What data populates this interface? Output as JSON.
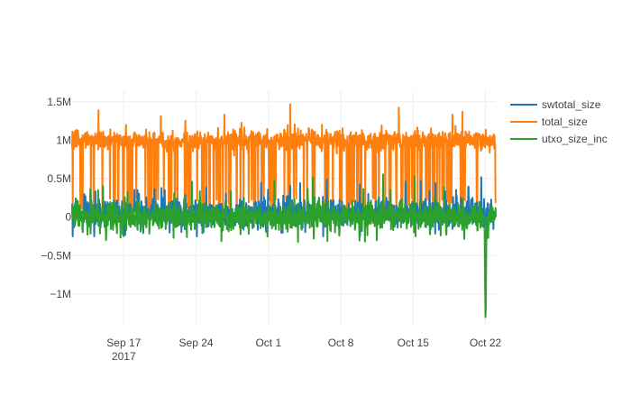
{
  "chart_data": {
    "type": "line",
    "title": "",
    "xlabel": "",
    "ylabel": "",
    "x_start": "2017-09-12",
    "x_end": "2017-10-23",
    "xlim": [
      "2017-09-12",
      "2017-10-23"
    ],
    "ylim": [
      -1400000,
      1650000
    ],
    "grid": true,
    "legend": "top-right",
    "x_ticks": [
      {
        "date": "2017-09-17",
        "label": "Sep 17",
        "sublabel": "2017"
      },
      {
        "date": "2017-09-24",
        "label": "Sep 24",
        "sublabel": ""
      },
      {
        "date": "2017-10-01",
        "label": "Oct 1",
        "sublabel": ""
      },
      {
        "date": "2017-10-08",
        "label": "Oct 8",
        "sublabel": ""
      },
      {
        "date": "2017-10-15",
        "label": "Oct 15",
        "sublabel": ""
      },
      {
        "date": "2017-10-22",
        "label": "Oct 22",
        "sublabel": ""
      }
    ],
    "y_ticks": [
      {
        "value": 1500000,
        "label": "1.5M"
      },
      {
        "value": 1000000,
        "label": "1M"
      },
      {
        "value": 500000,
        "label": "0.5M"
      },
      {
        "value": 0,
        "label": "0"
      },
      {
        "value": -500000,
        "label": "−0.5M"
      },
      {
        "value": -1000000,
        "label": "−1M"
      }
    ],
    "series": [
      {
        "name": "swtotal_size",
        "color": "#1f77b4",
        "pattern": "noise around 0; bulk about -150K to 250K, occasional peaks up to about 600K late in the range",
        "baseline": 50000,
        "spread": 150000,
        "max": 600000,
        "min": -250000
      },
      {
        "name": "total_size",
        "color": "#ff7f0e",
        "pattern": "blocks: mostly near 1M, dropping frequently toward 0; peaks up to about 1.5M",
        "baseline": 1000000,
        "spread": 60000,
        "max": 1500000,
        "min": 0
      },
      {
        "name": "utxo_size_inc",
        "color": "#2ca02c",
        "pattern": "noise around 0; bulk about -400K to 400K, peaks to about 800K, one trough to about -1.3M near Oct 22",
        "baseline": 0,
        "spread": 150000,
        "max": 800000,
        "min": -1300000,
        "notable_min": {
          "date": "2017-10-22",
          "value": -1300000
        }
      }
    ]
  }
}
